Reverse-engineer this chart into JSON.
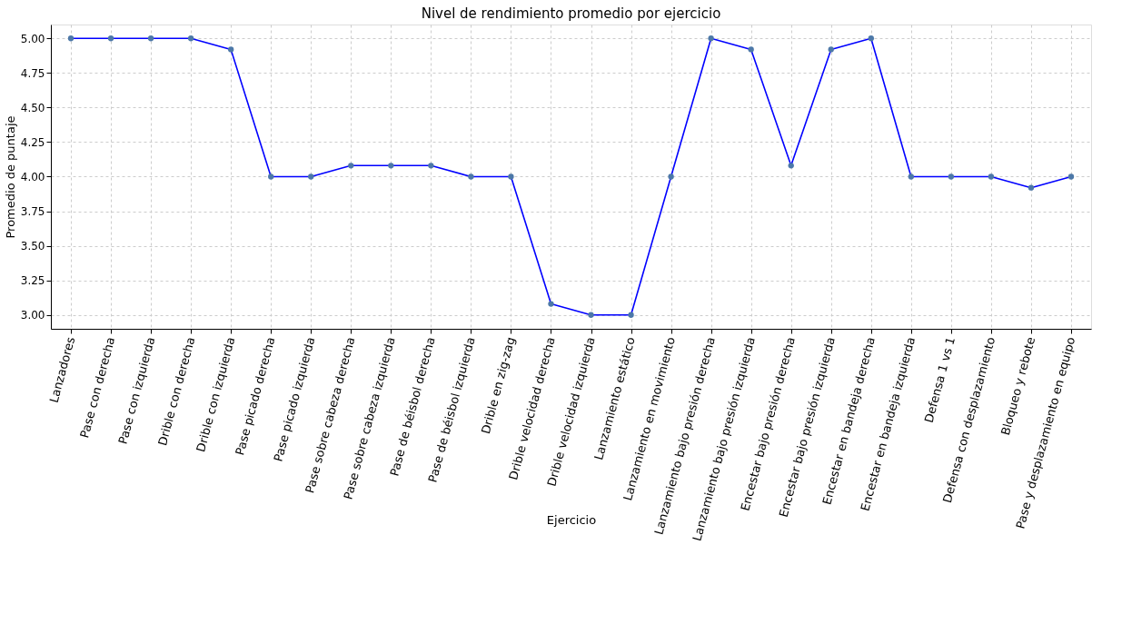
{
  "chart_data": {
    "type": "line",
    "title": "Nivel de rendimiento promedio por ejercicio",
    "xlabel": "Ejercicio",
    "ylabel": "Promedio de puntaje",
    "categories": [
      "Lanzadores",
      "Pase con derecha",
      "Pase con izquierda",
      "Drible con derecha",
      "Drible con izquierda",
      "Pase picado derecha",
      "Pase picado izquierda",
      "Pase sobre cabeza derecha",
      "Pase sobre cabeza izquierda",
      "Pase de béisbol derecha",
      "Pase de béisbol izquierda",
      "Drible en zig-zag",
      "Drible velocidad derecha",
      "Drible velocidad izquierda",
      "Lanzamiento estático",
      "Lanzamiento en movimiento",
      "Lanzamiento bajo presión derecha",
      "Lanzamiento bajo presión izquierda",
      "Encestar bajo presión derecha",
      "Encestar bajo presión izquierda",
      "Encestar en bandeja derecha",
      "Encestar en bandeja izquierda",
      "Defensa 1 vs 1",
      "Defensa con desplazamiento",
      "Bloqueo y rebote",
      "Pase y desplazamiento en equipo"
    ],
    "series": [
      {
        "color": "#0000ff",
        "values": [
          5,
          5,
          5,
          5,
          4.92,
          4,
          4,
          4.08,
          4.08,
          4.08,
          4,
          4,
          3.08,
          3,
          3,
          4,
          5,
          4.92,
          4.08,
          4.92,
          5,
          4,
          4,
          4,
          3.92,
          4
        ]
      }
    ],
    "ylim": [
      2.9,
      5.1
    ],
    "yticks": [
      {
        "value": 3,
        "label": "3.00"
      },
      {
        "value": 3.25,
        "label": "3.25"
      },
      {
        "value": 3.5,
        "label": "3.50"
      },
      {
        "value": 3.75,
        "label": "3.75"
      },
      {
        "value": 4,
        "label": "4.00"
      },
      {
        "value": 4.25,
        "label": "4.25"
      },
      {
        "value": 4.5,
        "label": "4.50"
      },
      {
        "value": 4.75,
        "label": "4.75"
      },
      {
        "value": 5,
        "label": "5.00"
      }
    ],
    "grid": true,
    "marker": "circle",
    "line_style": "solid"
  }
}
